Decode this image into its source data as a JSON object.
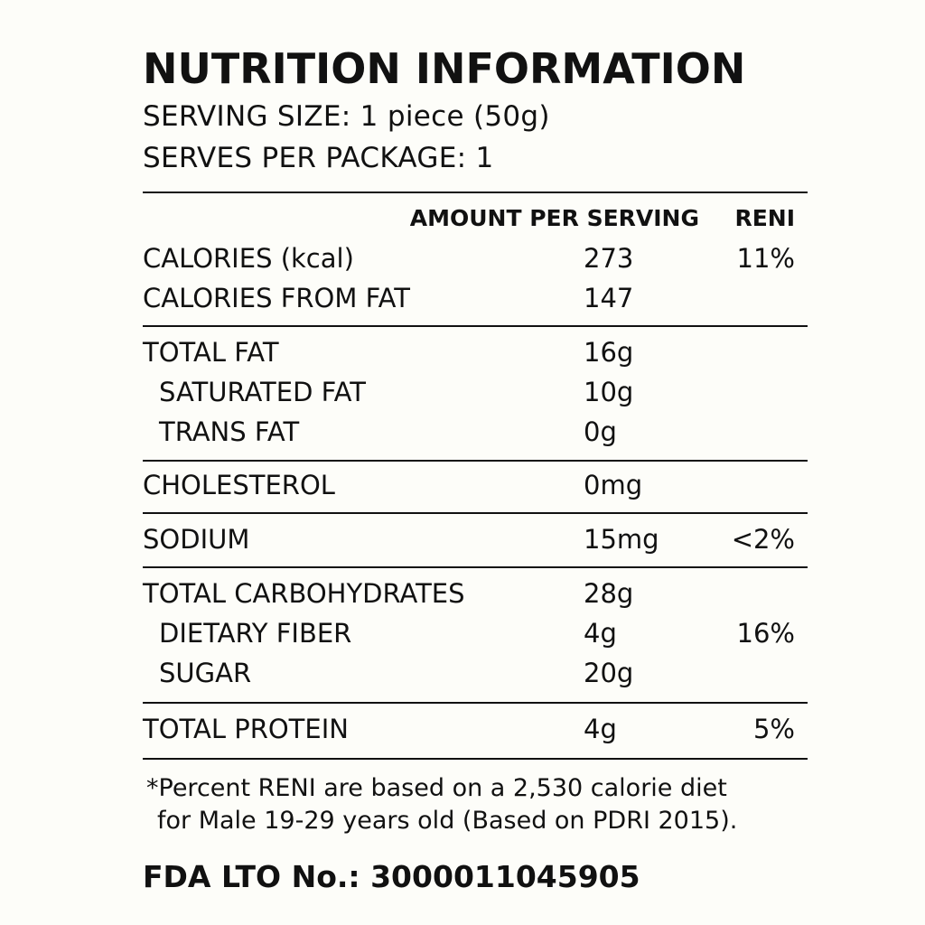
{
  "label": {
    "title": "NUTRITION INFORMATION",
    "serving_size": "SERVING SIZE: 1 piece (50g)",
    "serves_per_package": "SERVES PER PACKAGE: 1",
    "header": {
      "amount": "AMOUNT PER SERVING",
      "percent": "RENI"
    },
    "rows": [
      {
        "name": "CALORIES (kcal)",
        "amount": "273",
        "percent": "11%"
      },
      {
        "name": "CALORIES FROM FAT",
        "amount": "147",
        "percent": ""
      },
      {
        "name": "TOTAL FAT",
        "amount": "16g",
        "percent": ""
      },
      {
        "name": "SATURATED FAT",
        "amount": "10g",
        "percent": ""
      },
      {
        "name": "TRANS FAT",
        "amount": "0g",
        "percent": ""
      },
      {
        "name": "CHOLESTEROL",
        "amount": "0mg",
        "percent": ""
      },
      {
        "name": "SODIUM",
        "amount": "15mg",
        "percent": "<2%"
      },
      {
        "name": "TOTAL CARBOHYDRATES",
        "amount": "28g",
        "percent": ""
      },
      {
        "name": "DIETARY FIBER",
        "amount": "4g",
        "percent": "16%"
      },
      {
        "name": "SUGAR",
        "amount": "20g",
        "percent": ""
      },
      {
        "name": "TOTAL PROTEIN",
        "amount": "4g",
        "percent": "5%"
      }
    ],
    "footnote_line1": "*Percent RENI are based on a 2,530 calorie diet",
    "footnote_line2": "for Male 19-29 years old (Based on PDRI 2015).",
    "fda_lto": "FDA LTO No.: 3000011045905"
  }
}
